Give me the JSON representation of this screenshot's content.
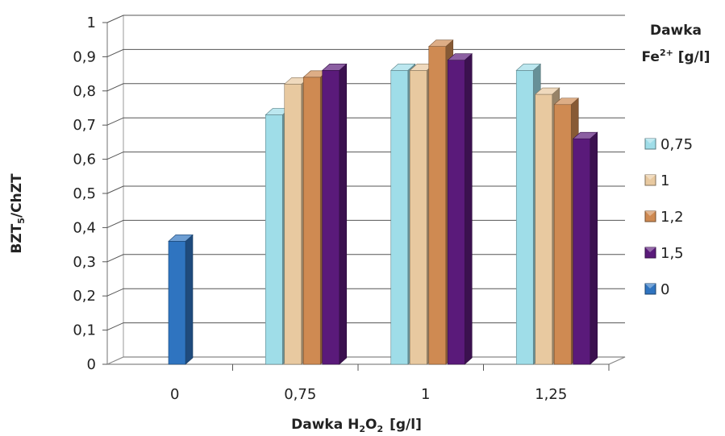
{
  "chart_data": {
    "type": "bar",
    "style": "3d-clustered-column",
    "title": "",
    "xlabel_main": "Dawka H",
    "xlabel_sub": "2",
    "xlabel_tail": "O",
    "xlabel_sub2": "2",
    "xlabel_unit": "[g/l]",
    "ylabel_main": "BZT",
    "ylabel_sub": "5",
    "ylabel_tail": "/ChZT",
    "legend_title_line1": "Dawka",
    "legend_title_line2_main": "Fe",
    "legend_title_line2_sup": "2+",
    "legend_title_line2_tail": " [g/l]",
    "categories": [
      "0",
      "0,75",
      "1",
      "1,25"
    ],
    "yticks": [
      "0",
      "0,1",
      "0,2",
      "0,3",
      "0,4",
      "0,5",
      "0,6",
      "0,7",
      "0,8",
      "0,9",
      "1"
    ],
    "ylim": [
      0,
      1
    ],
    "grid": true,
    "legend_position": "right",
    "series": [
      {
        "name": "0,75",
        "color": "#9fdde8",
        "values": [
          null,
          0.73,
          0.86,
          0.86
        ]
      },
      {
        "name": "1",
        "color": "#e8c9a0",
        "values": [
          null,
          0.82,
          0.86,
          0.79
        ]
      },
      {
        "name": "1,2",
        "color": "#cf8a52",
        "values": [
          null,
          0.84,
          0.93,
          0.76
        ]
      },
      {
        "name": "1,5",
        "color": "#5a1a7a",
        "values": [
          null,
          0.86,
          0.89,
          0.66
        ]
      },
      {
        "name": "0",
        "color": "#2f74c0",
        "values": [
          0.36,
          null,
          null,
          null
        ]
      }
    ]
  }
}
